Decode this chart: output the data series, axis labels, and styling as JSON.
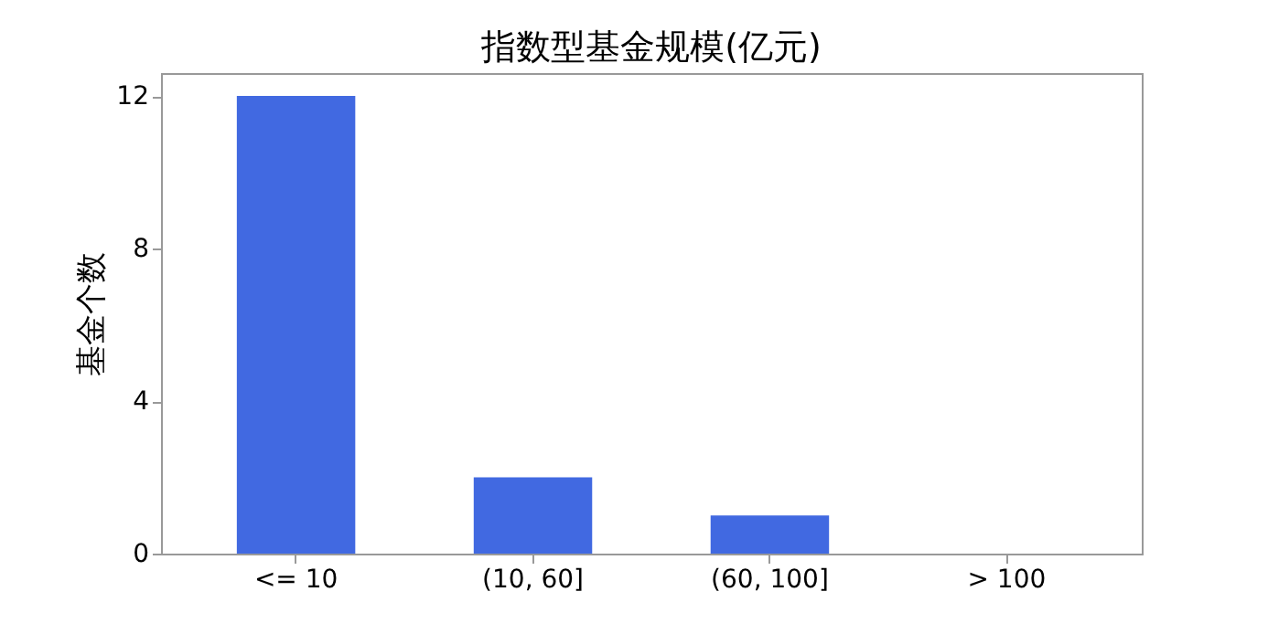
{
  "chart_data": {
    "type": "bar",
    "title": "指数型基金规模(亿元)",
    "ylabel": "基金个数",
    "categories": [
      "<= 10",
      "(10, 60]",
      "(60, 100]",
      "> 100"
    ],
    "values": [
      12,
      2,
      1,
      0
    ],
    "color": "#4169e1",
    "ylim": [
      0,
      12.6
    ],
    "yticks": [
      0,
      4,
      8,
      12
    ],
    "grid": false
  }
}
